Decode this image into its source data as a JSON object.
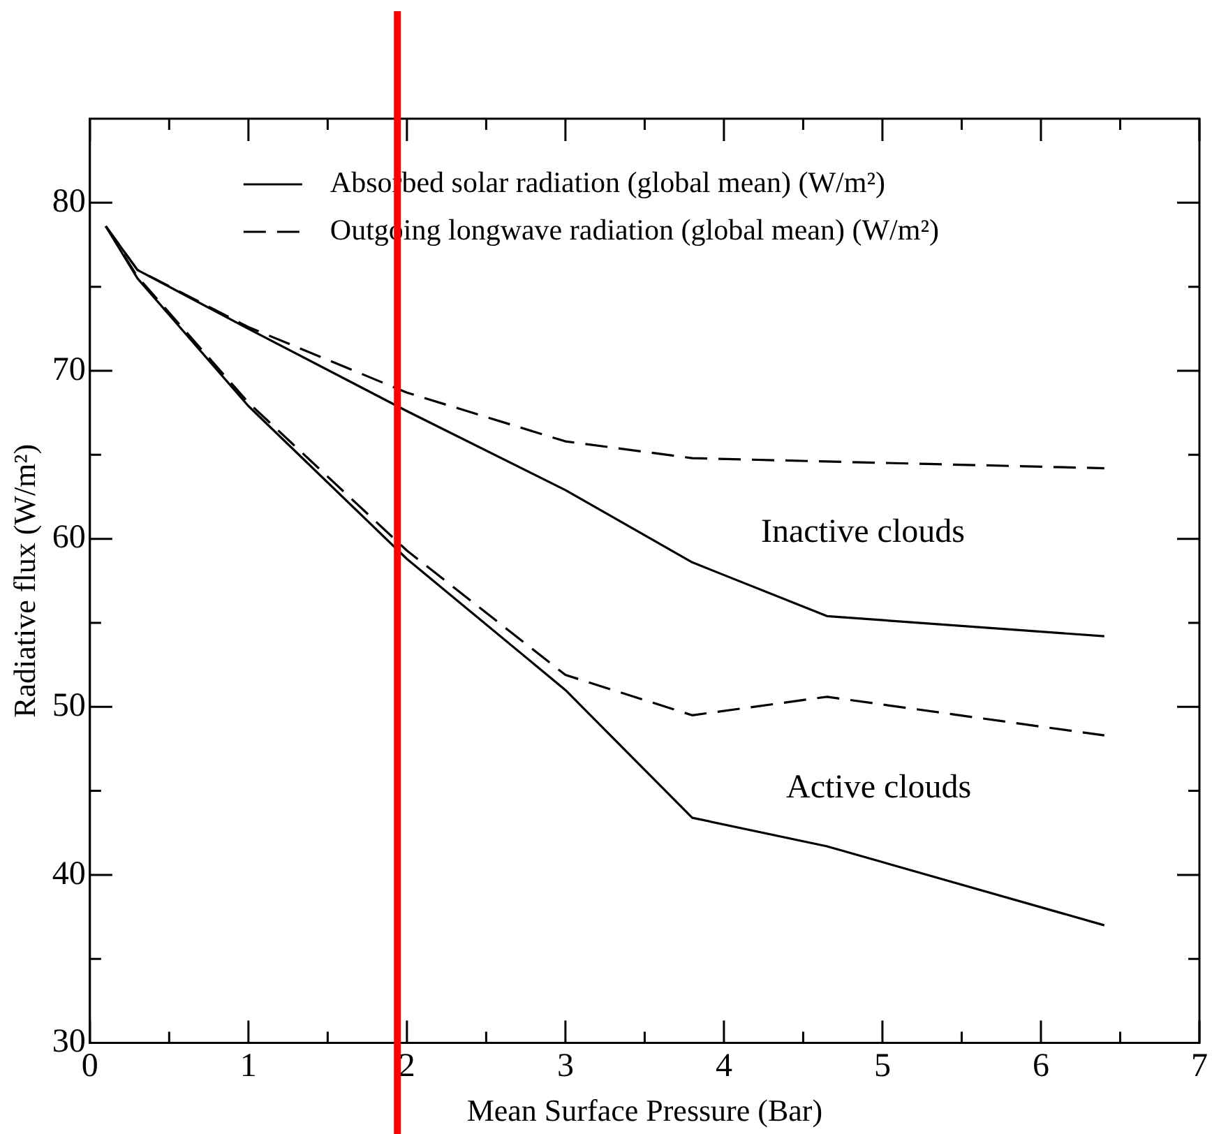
{
  "chart_data": {
    "type": "line",
    "xlabel": "Mean Surface Pressure (Bar)",
    "ylabel": "Radiative flux (W/m²)",
    "series": [
      {
        "name": "Absorbed solar radiation (global mean) (W/m²)",
        "color": "#000000",
        "line_style": "solid",
        "x": [
          0.1,
          0.3,
          1,
          2,
          3,
          3.8,
          4.65,
          6.4
        ],
        "values": [
          78.6,
          76.0,
          72.5,
          67.6,
          62.9,
          58.6,
          55.4,
          54.2
        ]
      },
      {
        "name": "Outgoing longwave radiation (global mean) (W/m²)",
        "color": "#000000",
        "line_style": "dashed",
        "x": [
          0.1,
          0.3,
          1,
          2,
          3,
          3.8,
          4.65,
          6.4
        ],
        "values": [
          78.6,
          76.0,
          72.6,
          68.7,
          65.8,
          64.8,
          64.6,
          64.2
        ]
      },
      {
        "color": "#000000",
        "line_style": "solid",
        "x": [
          0.1,
          0.3,
          1,
          2,
          3,
          3.8,
          4.65,
          6.4
        ],
        "values": [
          78.6,
          75.5,
          67.9,
          58.8,
          51.0,
          43.4,
          41.7,
          37.0
        ]
      },
      {
        "color": "#000000",
        "line_style": "dashed",
        "x": [
          0.1,
          0.3,
          1,
          2,
          3,
          3.8,
          4.65,
          6.4
        ],
        "values": [
          78.6,
          75.6,
          68.1,
          59.3,
          51.9,
          49.5,
          50.6,
          48.3
        ]
      }
    ],
    "xlim": [
      0,
      7
    ],
    "xticks": [
      0,
      {
        "value": 0.5,
        "label": null
      },
      1,
      {
        "value": 1.5,
        "label": null
      },
      2,
      {
        "value": 2.5,
        "label": null
      },
      3,
      {
        "value": 3.5,
        "label": null
      },
      4,
      {
        "value": 4.5,
        "label": null
      },
      5,
      {
        "value": 5.5,
        "label": null
      },
      6,
      {
        "value": 6.5,
        "label": null
      },
      7
    ],
    "ylim": [
      30,
      85
    ],
    "yticks": [
      30,
      {
        "value": 35,
        "label": null
      },
      40,
      {
        "value": 45,
        "label": null
      },
      50,
      {
        "value": 55,
        "label": null
      },
      60,
      {
        "value": 65,
        "label": null
      },
      70,
      {
        "value": 75,
        "label": null
      },
      80
    ],
    "annotations": [
      "Inactive clouds",
      "Active clouds"
    ],
    "ref_lines": [
      {
        "axis": "x",
        "value": 1.94,
        "color": "#ff0000"
      }
    ],
    "legend": "top right",
    "marker": "none"
  }
}
